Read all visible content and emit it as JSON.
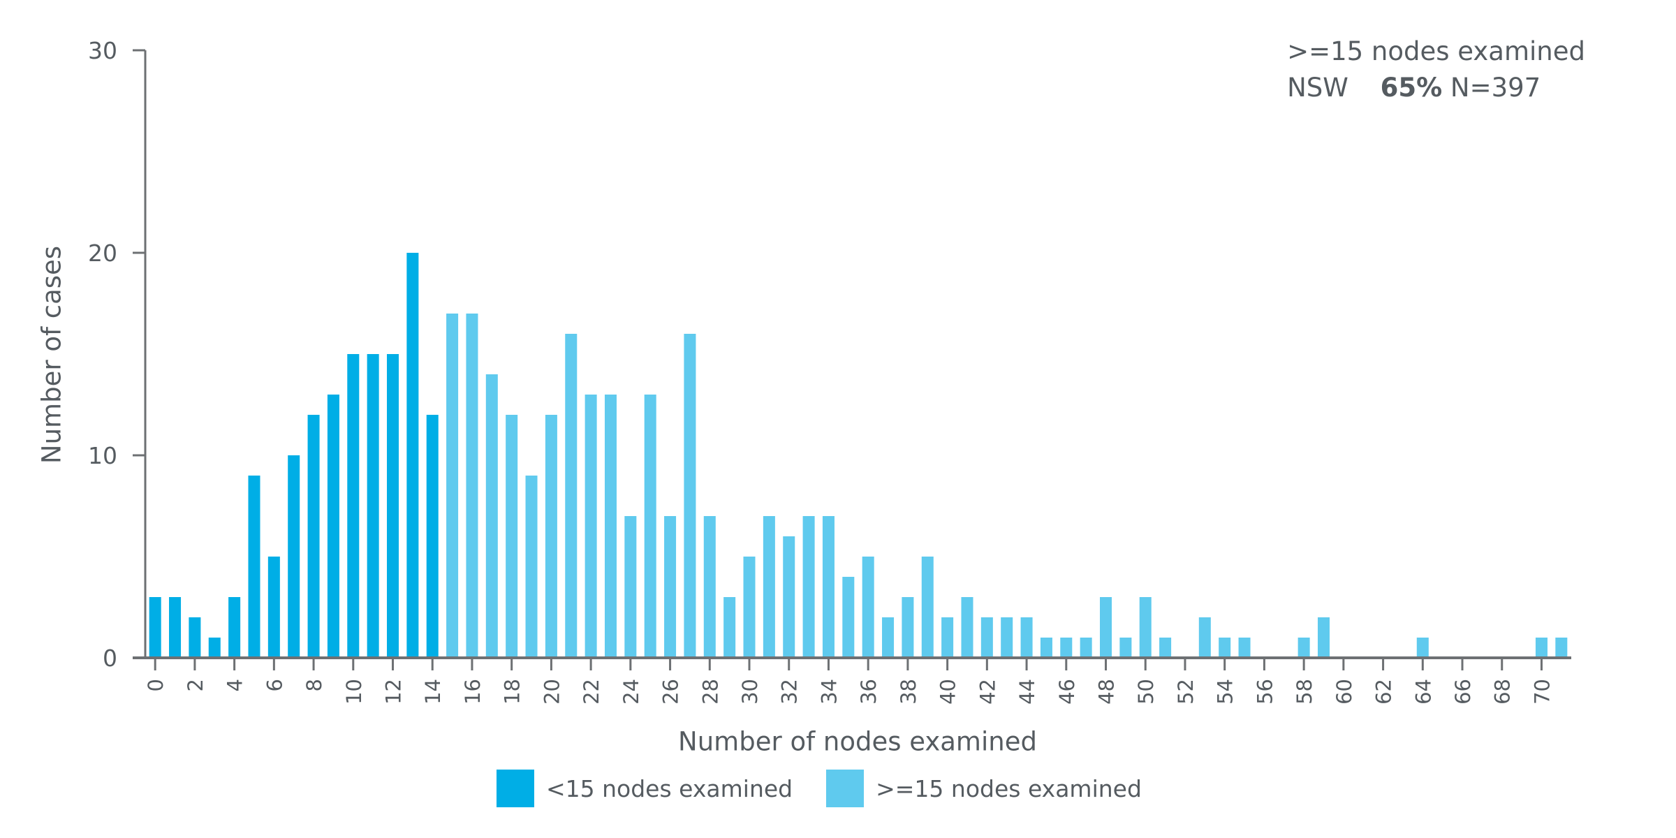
{
  "chart_data": {
    "type": "bar",
    "title": "",
    "xlabel": "Number of nodes examined",
    "ylabel": "Number of cases",
    "ylim": [
      0,
      30
    ],
    "yticks": [
      0,
      10,
      20,
      30
    ],
    "xtick_labels": [
      "0",
      "2",
      "4",
      "6",
      "8",
      "10",
      "12",
      "14",
      "16",
      "18",
      "20",
      "22",
      "24",
      "26",
      "28",
      "30",
      "32",
      "34",
      "36",
      "38",
      "40",
      "42",
      "44",
      "46",
      "48",
      "50",
      "52",
      "54",
      "56",
      "58",
      "60",
      "62",
      "64",
      "66",
      "68",
      "70"
    ],
    "grid": false,
    "legend_position": "bottom",
    "categories": [
      0,
      1,
      2,
      3,
      4,
      5,
      6,
      7,
      8,
      9,
      10,
      11,
      12,
      13,
      14,
      15,
      16,
      17,
      18,
      19,
      20,
      21,
      22,
      23,
      24,
      25,
      26,
      27,
      28,
      29,
      30,
      31,
      32,
      33,
      34,
      35,
      36,
      37,
      38,
      39,
      40,
      41,
      42,
      43,
      44,
      45,
      46,
      47,
      48,
      49,
      50,
      51,
      52,
      53,
      54,
      55,
      56,
      57,
      58,
      59,
      60,
      61,
      62,
      63,
      64,
      65,
      66,
      67,
      68,
      69,
      70,
      71
    ],
    "values": [
      3,
      3,
      2,
      1,
      3,
      9,
      5,
      10,
      12,
      13,
      15,
      15,
      15,
      20,
      12,
      17,
      17,
      14,
      12,
      9,
      12,
      16,
      13,
      13,
      7,
      13,
      7,
      16,
      7,
      3,
      5,
      7,
      6,
      7,
      7,
      4,
      5,
      2,
      3,
      5,
      2,
      3,
      2,
      2,
      2,
      1,
      1,
      1,
      3,
      1,
      3,
      1,
      0,
      2,
      1,
      1,
      0,
      0,
      1,
      2,
      0,
      0,
      0,
      0,
      1,
      0,
      0,
      0,
      0,
      0,
      1,
      1
    ],
    "series": [
      {
        "name": "<15 nodes examined",
        "color": "#00aee6",
        "range": [
          0,
          14
        ]
      },
      {
        "name": ">=15 nodes examined",
        "color": "#5fcaee",
        "range": [
          15,
          71
        ]
      }
    ],
    "annotations": [
      ">=15 nodes examined",
      "NSW 65% N=397"
    ]
  },
  "annotation": {
    "line1": ">=15 nodes examined",
    "region": "NSW",
    "percent": "65%",
    "n": "N=397"
  },
  "axes": {
    "xlabel": "Number of nodes examined",
    "ylabel": "Number of cases"
  },
  "legend": {
    "items": [
      {
        "label": "<15 nodes examined",
        "color": "#00aee6"
      },
      {
        "label": ">=15 nodes examined",
        "color": "#5fcaee"
      }
    ]
  },
  "colors": {
    "axis": "#6d7073",
    "text": "#555b60"
  }
}
